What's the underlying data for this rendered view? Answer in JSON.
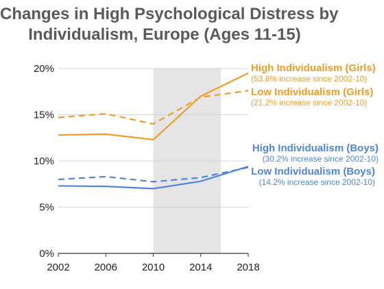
{
  "chart_data": {
    "type": "line",
    "title": [
      "Changes in High Psychological Distress by",
      "Individualism, Europe (Ages 11-15)"
    ],
    "x": [
      2002,
      2006,
      2010,
      2014,
      2018
    ],
    "x_tick_labels": [
      "2002",
      "2006",
      "2010",
      "2014",
      "2018"
    ],
    "ylim": [
      0,
      20
    ],
    "y_ticks": [
      0,
      5,
      10,
      15,
      20
    ],
    "y_tick_labels": [
      "0%",
      "5%",
      "10%",
      "15%",
      "20%"
    ],
    "grid": "horizontal",
    "shaded_region": [
      2010,
      2015.7
    ],
    "series": [
      {
        "name": "High Individualism (Girls)",
        "note": "(53.8% increase since 2002-10)",
        "color": "#f39c24",
        "dash": false,
        "values": [
          12.8,
          12.9,
          12.3,
          17.0,
          19.5
        ]
      },
      {
        "name": "Low Individualism (Girls)",
        "note": "(21.2% increase since 2002-10)",
        "color": "#f39c24",
        "dash": true,
        "values": [
          14.7,
          15.1,
          14.0,
          16.9,
          17.6
        ]
      },
      {
        "name": "High Individualism (Boys)",
        "note": "(30.2% increase since 2002-10)",
        "color": "#4d86dc",
        "dash": false,
        "values": [
          7.3,
          7.25,
          7.0,
          7.8,
          9.4
        ]
      },
      {
        "name": "Low Individualism (Boys)",
        "note": "(14.2% increase since 2002-10)",
        "color": "#4d86dc",
        "dash": true,
        "values": [
          8.0,
          8.3,
          7.75,
          8.2,
          9.3
        ]
      }
    ]
  }
}
